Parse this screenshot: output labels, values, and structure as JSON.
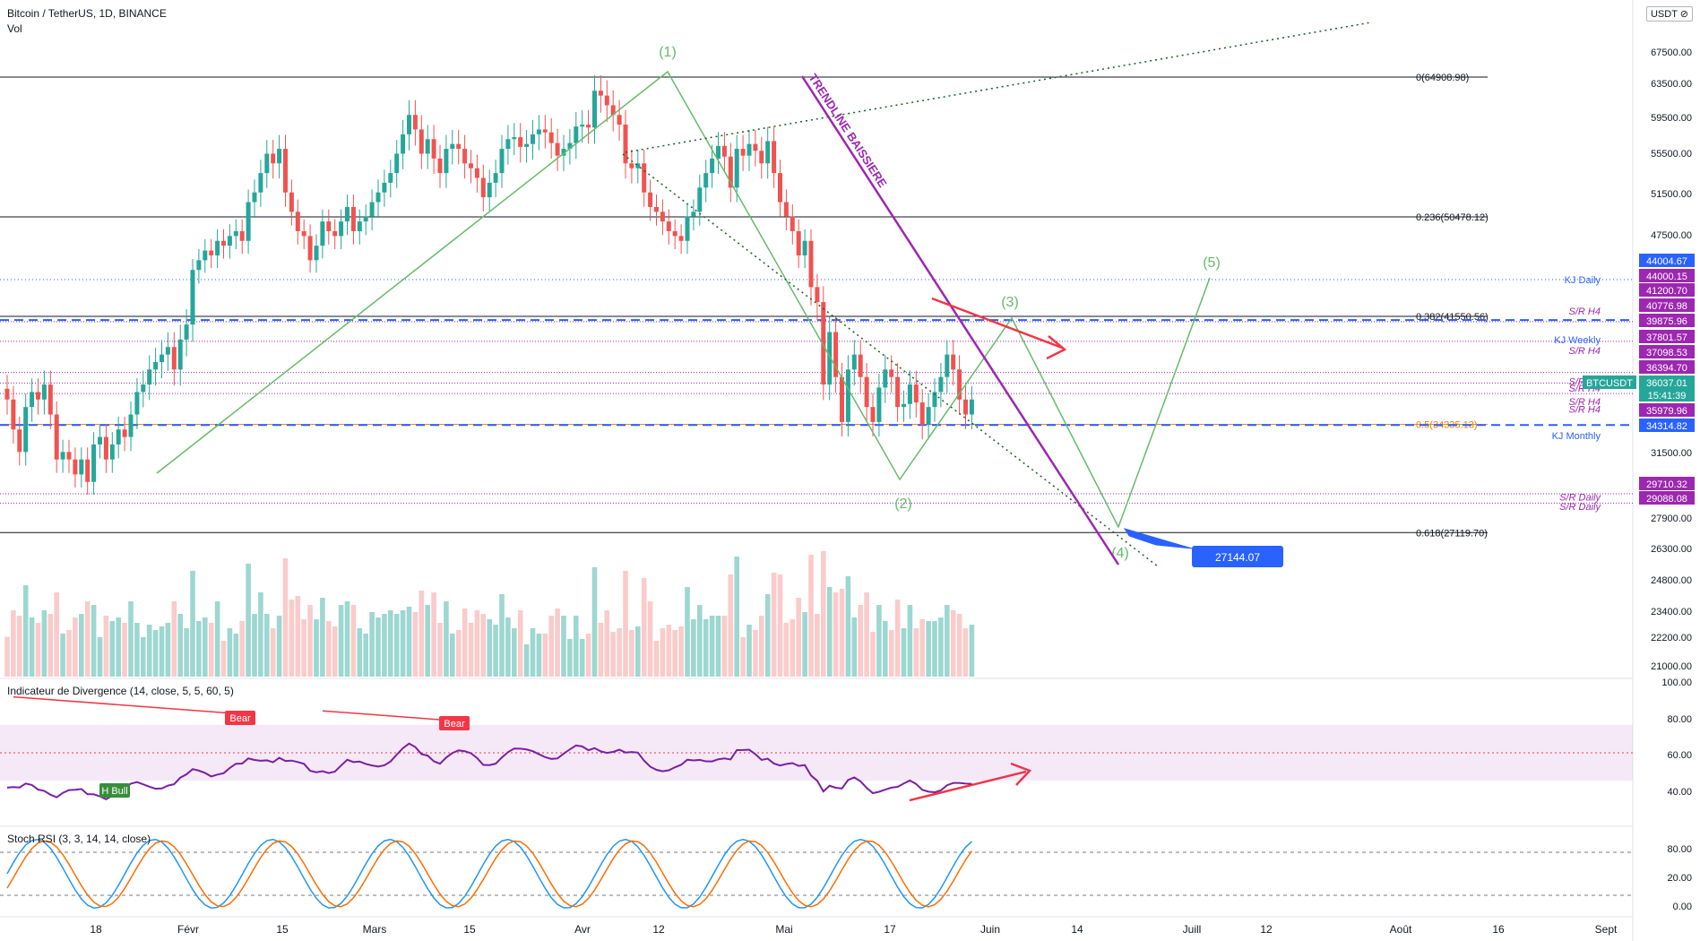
{
  "header": {
    "symbol_line": "Bitcoin / TetherUS, 1D, BINANCE",
    "sub": "Vol",
    "currency": "USDT ⊘"
  },
  "price_axis": {
    "ticks": [
      "67500.00",
      "63500.00",
      "59500.00",
      "55500.00",
      "51500.00",
      "47500.00",
      "31500.00",
      "27900.00",
      "26300.00",
      "24800.00",
      "23400.00",
      "22200.00",
      "21000.00"
    ],
    "top_tick": "7"
  },
  "time_axis": [
    "18",
    "Févr",
    "15",
    "Mars",
    "15",
    "Avr",
    "12",
    "Mai",
    "17",
    "Juin",
    "14",
    "Juill",
    "12",
    "Août",
    "16",
    "Sept"
  ],
  "price_labels": [
    {
      "text": "44004.67",
      "color": "#2962ff"
    },
    {
      "text": "44000.15",
      "color": "#9c27b0"
    },
    {
      "text": "41200.70",
      "color": "#9c27b0"
    },
    {
      "text": "40776.98",
      "color": "#9c27b0"
    },
    {
      "text": "39875.96",
      "color": "#9c27b0"
    },
    {
      "text": "37801.57",
      "color": "#9c27b0"
    },
    {
      "text": "37098.53",
      "color": "#9c27b0"
    },
    {
      "text": "36394.70",
      "color": "#9c27b0"
    },
    {
      "text": "36037.01",
      "color": "#26a69a"
    },
    {
      "text": "15:41:39",
      "color": "#26a69a"
    },
    {
      "text": "35979.96",
      "color": "#9c27b0"
    },
    {
      "text": "34314.82",
      "color": "#2962ff"
    },
    {
      "text": "29710.32",
      "color": "#9c27b0"
    },
    {
      "text": "29088.08",
      "color": "#9c27b0"
    }
  ],
  "ticker_tag": "BTCUSDT",
  "fib_labels": [
    {
      "text": "0(64908.98)",
      "color": "#131722"
    },
    {
      "text": "0.236(50478.12)",
      "color": "#131722"
    },
    {
      "text": "0.382(41550.56)",
      "color": "#131722"
    },
    {
      "text": "0.5(34335.13)",
      "color": "#f57c00"
    },
    {
      "text": "0.618(27119.70)",
      "color": "#131722"
    }
  ],
  "sr_labels": [
    {
      "text": "KJ Daily",
      "color": "#2962ff"
    },
    {
      "text": "S/R H4",
      "color": "#9c27b0"
    },
    {
      "text": "KJ Weekly",
      "color": "#2962ff"
    },
    {
      "text": "S/R H4",
      "color": "#9c27b0"
    },
    {
      "text": "S/R H4",
      "color": "#9c27b0"
    },
    {
      "text": "S/R H4",
      "color": "#9c27b0"
    },
    {
      "text": "S/R H4",
      "color": "#9c27b0"
    },
    {
      "text": "S/R H4",
      "color": "#9c27b0"
    },
    {
      "text": "KJ Monthly",
      "color": "#2962ff"
    },
    {
      "text": "S/R Daily",
      "color": "#9c27b0"
    },
    {
      "text": "S/R Daily",
      "color": "#9c27b0"
    }
  ],
  "wave_labels": [
    "(1)",
    "(2)",
    "(3)",
    "(4)",
    "(5)"
  ],
  "trendline_label": "TRENDLINE BAISSIERE",
  "target_price": "27144.07",
  "divergence": {
    "title": "Indicateur de Divergence (14, close, 5, 5, 60, 5)",
    "ticks": [
      "100.00",
      "80.00",
      "60.00",
      "40.00"
    ],
    "markers": [
      "Bear",
      "Bear",
      "H Bull"
    ]
  },
  "stoch": {
    "title": "Stoch RSI (3, 3, 14, 14, close)",
    "ticks": [
      "80.00",
      "20.00",
      "0.00"
    ]
  },
  "colors": {
    "up": "#26a69a",
    "down": "#ef5350",
    "wave": "#66bb6a",
    "trend": "#9c27b0",
    "kj": "#2962ff",
    "rsi": "#7b1fa2",
    "stoch_k": "#2196f3",
    "stoch_d": "#ff6d00"
  },
  "chart_data": {
    "type": "candlestick",
    "title": "Bitcoin / TetherUS, 1D, BINANCE",
    "fib_levels": [
      {
        "level": 0,
        "price": 64908.98
      },
      {
        "level": 0.236,
        "price": 50478.12
      },
      {
        "level": 0.382,
        "price": 41550.56
      },
      {
        "level": 0.5,
        "price": 34335.13
      },
      {
        "level": 0.618,
        "price": 27119.7
      }
    ],
    "elliott_waves": [
      {
        "label": "(1)",
        "date": "Apr 14",
        "price": 64900
      },
      {
        "label": "(2)",
        "date": "May 19",
        "price": 30000
      },
      {
        "label": "(3)",
        "date": "May 29",
        "price": 40000
      },
      {
        "label": "(4)",
        "date": "Jun 20",
        "price": 27144.07
      },
      {
        "label": "(5)",
        "date": "Jul 2",
        "price": 43500
      }
    ],
    "closes": [
      36000,
      34000,
      32500,
      35500,
      36500,
      36000,
      37000,
      35000,
      32000,
      32500,
      32000,
      31000,
      32000,
      30500,
      33000,
      33500,
      32000,
      33000,
      34000,
      33500,
      35000,
      36500,
      37000,
      38000,
      38500,
      39000,
      39500,
      38000,
      40000,
      41000,
      45000,
      46000,
      47000,
      46500,
      48000,
      47500,
      48500,
      49000,
      48000,
      52000,
      53000,
      55000,
      57000,
      56000,
      57500,
      53000,
      51000,
      49000,
      48500,
      46000,
      47500,
      50000,
      49000,
      48500,
      50000,
      51500,
      49000,
      50000,
      50500,
      52000,
      53000,
      54000,
      55000,
      57000,
      59000,
      61000,
      59500,
      57000,
      58500,
      56500,
      55000,
      57500,
      58000,
      57500,
      56000,
      55500,
      54500,
      52500,
      54000,
      55000,
      57500,
      58500,
      58700,
      57700,
      58000,
      59000,
      59500,
      59200,
      58100,
      56800,
      57500,
      58100,
      59800,
      60000,
      59700,
      63500,
      63000,
      62000,
      61000,
      60000,
      56000,
      55500,
      56000,
      53000,
      51500,
      51000,
      50000,
      49000,
      48500,
      48000,
      50500,
      51000,
      53500,
      55000,
      56500,
      57800,
      56700,
      53500,
      57500,
      56800,
      58000,
      57300,
      56000,
      58300,
      55000,
      52000,
      50500,
      49000,
      46500,
      48000,
      43500,
      42500,
      37000,
      40500,
      37500,
      34500,
      38000,
      39000,
      37500,
      35500,
      34500,
      36800,
      38000,
      37500,
      35500,
      35700,
      37000,
      35800,
      34300,
      35500,
      36500,
      37500,
      39000,
      38000,
      36000,
      35000,
      36000
    ],
    "indicators": [
      {
        "name": "Indicateur de Divergence (14, close, 5, 5, 60, 5)",
        "band": [
          30,
          70
        ],
        "mid": 50
      },
      {
        "name": "Stoch RSI (3, 3, 14, 14, close)",
        "levels": [
          80,
          20
        ]
      }
    ]
  }
}
